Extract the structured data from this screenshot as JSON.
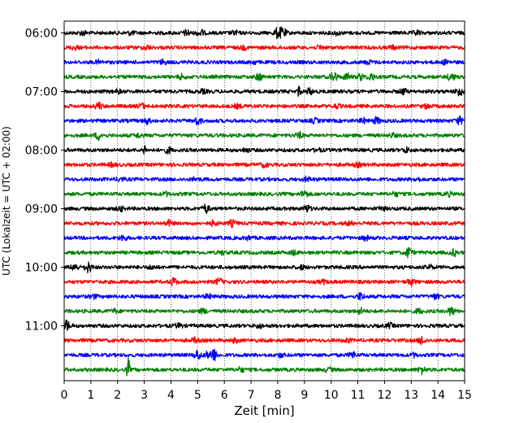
{
  "chart_data": {
    "type": "line",
    "title": "",
    "xlabel": "Zeit  [min]",
    "ylabel": "UTC (Lokalzeit = UTC + 02:00)",
    "xlim": [
      0,
      15
    ],
    "x_ticks": [
      "0",
      "1",
      "2",
      "3",
      "4",
      "5",
      "6",
      "7",
      "8",
      "9",
      "10",
      "11",
      "12",
      "13",
      "14",
      "15"
    ],
    "y_ticks": [
      "06:00",
      "07:00",
      "08:00",
      "09:00",
      "10:00",
      "11:00"
    ],
    "grid": "vertical dotted",
    "trace_colors": [
      "#000000",
      "#ff0000",
      "#0000ff",
      "#008000"
    ],
    "series": [
      {
        "start": "06:00",
        "color": "#000000",
        "bursts": [
          [
            0.7,
            0.8
          ],
          [
            2.5,
            0.6
          ],
          [
            4.6,
            1.0
          ],
          [
            5.1,
            1.2
          ],
          [
            6.4,
            0.7
          ],
          [
            8.0,
            1.8
          ],
          [
            8.2,
            1.5
          ],
          [
            10.2,
            0.6
          ],
          [
            13.2,
            0.8
          ]
        ]
      },
      {
        "start": "06:15",
        "color": "#ff0000",
        "bursts": [
          [
            0.4,
            0.6
          ],
          [
            3.1,
            0.7
          ],
          [
            6.7,
            0.6
          ],
          [
            9.6,
            0.7
          ],
          [
            12.3,
            0.6
          ]
        ]
      },
      {
        "start": "06:30",
        "color": "#0000ff",
        "bursts": [
          [
            1.3,
            0.6
          ],
          [
            3.7,
            0.8
          ],
          [
            7.1,
            0.6
          ],
          [
            11.4,
            0.6
          ],
          [
            14.3,
            0.7
          ]
        ]
      },
      {
        "start": "06:45",
        "color": "#008000",
        "bursts": [
          [
            4.4,
            0.7
          ],
          [
            7.3,
            1.2
          ],
          [
            10.1,
            1.8
          ],
          [
            10.6,
            1.2
          ],
          [
            11.1,
            1.0
          ],
          [
            11.5,
            1.2
          ],
          [
            14.5,
            1.4
          ]
        ]
      },
      {
        "start": "07:00",
        "color": "#000000",
        "bursts": [
          [
            2.0,
            0.6
          ],
          [
            5.2,
            0.6
          ],
          [
            8.8,
            2.2
          ],
          [
            9.2,
            1.0
          ],
          [
            12.7,
            1.0
          ],
          [
            14.8,
            1.6
          ]
        ]
      },
      {
        "start": "07:15",
        "color": "#ff0000",
        "bursts": [
          [
            1.3,
            1.2
          ],
          [
            2.9,
            0.8
          ],
          [
            6.5,
            0.6
          ],
          [
            10.2,
            0.6
          ],
          [
            13.6,
            0.7
          ]
        ]
      },
      {
        "start": "07:30",
        "color": "#0000ff",
        "bursts": [
          [
            3.1,
            1.0
          ],
          [
            5.0,
            1.3
          ],
          [
            9.4,
            0.7
          ],
          [
            11.2,
            0.8
          ],
          [
            11.7,
            1.1
          ],
          [
            14.8,
            1.3
          ]
        ]
      },
      {
        "start": "07:45",
        "color": "#008000",
        "bursts": [
          [
            1.3,
            1.4
          ],
          [
            2.8,
            0.7
          ],
          [
            8.8,
            1.0
          ],
          [
            12.3,
            0.6
          ]
        ]
      },
      {
        "start": "08:00",
        "color": "#000000",
        "bursts": [
          [
            3.0,
            2.1
          ],
          [
            3.9,
            0.9
          ],
          [
            6.8,
            0.6
          ],
          [
            9.5,
            0.6
          ],
          [
            12.8,
            0.8
          ]
        ]
      },
      {
        "start": "08:15",
        "color": "#ff0000",
        "bursts": [
          [
            1.8,
            0.6
          ],
          [
            7.5,
            0.7
          ],
          [
            11.0,
            0.6
          ]
        ]
      },
      {
        "start": "08:30",
        "color": "#0000ff",
        "bursts": [
          [
            2.1,
            0.6
          ],
          [
            4.9,
            0.6
          ],
          [
            9.1,
            0.7
          ],
          [
            13.2,
            0.6
          ]
        ]
      },
      {
        "start": "08:45",
        "color": "#008000",
        "bursts": [
          [
            3.8,
            0.6
          ],
          [
            9.0,
            1.3
          ],
          [
            12.4,
            0.7
          ],
          [
            14.4,
            0.6
          ]
        ]
      },
      {
        "start": "09:00",
        "color": "#000000",
        "bursts": [
          [
            2.1,
            0.8
          ],
          [
            5.3,
            1.5
          ],
          [
            9.1,
            1.2
          ],
          [
            11.9,
            0.6
          ]
        ]
      },
      {
        "start": "09:15",
        "color": "#ff0000",
        "bursts": [
          [
            3.9,
            0.9
          ],
          [
            5.6,
            0.8
          ],
          [
            6.3,
            1.0
          ],
          [
            10.7,
            0.6
          ]
        ]
      },
      {
        "start": "09:30",
        "color": "#0000ff",
        "bursts": [
          [
            2.2,
            1.0
          ],
          [
            6.9,
            0.6
          ],
          [
            11.3,
            0.7
          ]
        ]
      },
      {
        "start": "09:45",
        "color": "#008000",
        "bursts": [
          [
            5.9,
            0.6
          ],
          [
            8.6,
            0.7
          ],
          [
            12.9,
            1.8
          ],
          [
            14.6,
            1.0
          ]
        ]
      },
      {
        "start": "10:00",
        "color": "#000000",
        "bursts": [
          [
            0.4,
            1.2
          ],
          [
            0.9,
            1.8
          ],
          [
            3.3,
            0.7
          ],
          [
            8.9,
            0.6
          ],
          [
            13.7,
            0.7
          ]
        ]
      },
      {
        "start": "10:15",
        "color": "#ff0000",
        "bursts": [
          [
            4.1,
            1.3
          ],
          [
            5.8,
            1.1
          ],
          [
            9.7,
            0.6
          ],
          [
            13.0,
            1.1
          ]
        ]
      },
      {
        "start": "10:30",
        "color": "#0000ff",
        "bursts": [
          [
            1.1,
            0.6
          ],
          [
            5.4,
            0.7
          ],
          [
            11.1,
            1.2
          ],
          [
            13.9,
            0.8
          ]
        ]
      },
      {
        "start": "10:45",
        "color": "#008000",
        "bursts": [
          [
            1.9,
            0.6
          ],
          [
            5.2,
            0.7
          ],
          [
            11.1,
            1.0
          ],
          [
            13.3,
            0.8
          ],
          [
            14.5,
            1.5
          ]
        ]
      },
      {
        "start": "11:00",
        "color": "#000000",
        "bursts": [
          [
            0.1,
            1.7
          ],
          [
            4.3,
            0.7
          ],
          [
            7.3,
            0.6
          ],
          [
            12.2,
            0.7
          ]
        ]
      },
      {
        "start": "11:15",
        "color": "#ff0000",
        "bursts": [
          [
            4.9,
            0.8
          ],
          [
            6.4,
            0.6
          ],
          [
            10.6,
            0.6
          ],
          [
            13.4,
            1.4
          ]
        ]
      },
      {
        "start": "11:30",
        "color": "#0000ff",
        "bursts": [
          [
            5.0,
            1.7
          ],
          [
            5.4,
            1.1
          ],
          [
            5.6,
            2.0
          ],
          [
            8.1,
            0.6
          ],
          [
            10.8,
            1.1
          ],
          [
            13.1,
            0.6
          ]
        ]
      },
      {
        "start": "11:45",
        "color": "#008000",
        "bursts": [
          [
            2.4,
            4.5
          ],
          [
            6.6,
            0.8
          ],
          [
            9.9,
            0.7
          ],
          [
            13.4,
            1.3
          ]
        ]
      }
    ]
  }
}
